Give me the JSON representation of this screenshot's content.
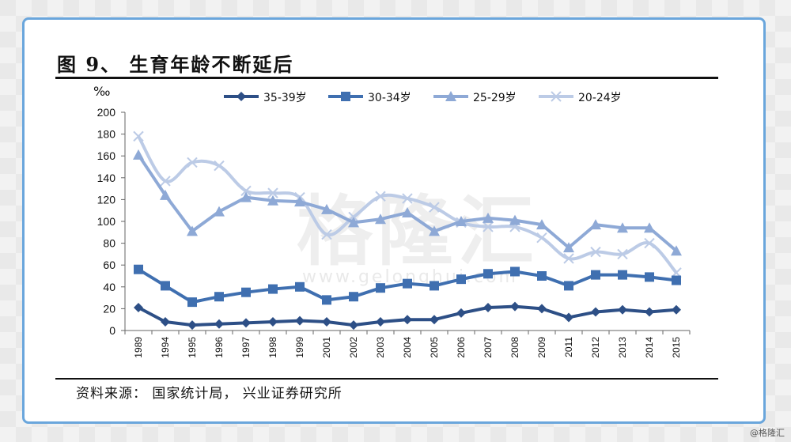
{
  "figure": {
    "title": "图 9、 生育年龄不断延后",
    "source": "资料来源： 国家统计局， 兴业证券研究所",
    "watermark": "格隆汇",
    "watermark_url": "www.gelonghui.com",
    "corner_tag": "@格隆汇"
  },
  "chart_data": {
    "type": "line",
    "unit_label": "‰",
    "ylim": [
      0,
      200
    ],
    "yticks": [
      0,
      20,
      40,
      60,
      80,
      100,
      120,
      140,
      160,
      180,
      200
    ],
    "categories": [
      "1989",
      "1994",
      "1995",
      "1996",
      "1997",
      "1998",
      "1999",
      "2001",
      "2002",
      "2003",
      "2004",
      "2005",
      "2006",
      "2007",
      "2008",
      "2009",
      "2011",
      "2012",
      "2013",
      "2014",
      "2015"
    ],
    "legend_position": "top",
    "grid": false,
    "series": [
      {
        "name": "35-39岁",
        "color": "#2d4f86",
        "marker": "diamond",
        "smooth": false,
        "values": [
          21,
          8,
          5,
          6,
          7,
          8,
          9,
          8,
          5,
          8,
          10,
          10,
          16,
          21,
          22,
          20,
          12,
          17,
          19,
          17,
          19
        ]
      },
      {
        "name": "30-34岁",
        "color": "#3f6fb0",
        "marker": "square",
        "smooth": false,
        "values": [
          56,
          41,
          26,
          31,
          35,
          38,
          40,
          28,
          31,
          39,
          43,
          41,
          47,
          52,
          54,
          50,
          41,
          51,
          51,
          49,
          46
        ]
      },
      {
        "name": "25-29岁",
        "color": "#8ea9d6",
        "marker": "triangle",
        "smooth": false,
        "values": [
          161,
          124,
          91,
          109,
          122,
          119,
          118,
          111,
          99,
          102,
          108,
          91,
          100,
          103,
          101,
          97,
          76,
          97,
          94,
          94,
          73
        ]
      },
      {
        "name": "20-24岁",
        "color": "#bccbe6",
        "marker": "cross",
        "smooth": true,
        "values": [
          178,
          137,
          154,
          151,
          128,
          126,
          122,
          88,
          104,
          123,
          121,
          113,
          99,
          95,
          95,
          85,
          66,
          72,
          70,
          80,
          53
        ]
      }
    ]
  }
}
